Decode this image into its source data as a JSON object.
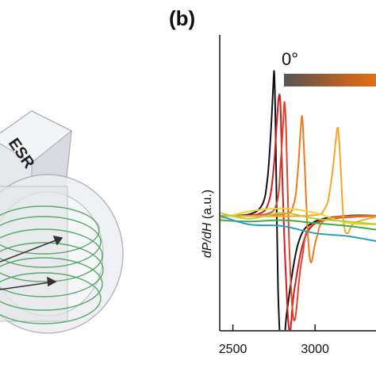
{
  "panel_label": "(b)",
  "gradient_label": "0°",
  "colors": {
    "device_body": "#e6e7ea",
    "device_edge": "#a9adb3",
    "coil": "#5aa86a",
    "black": "#111111"
  },
  "device": {
    "label": "ESR"
  },
  "chart_data": {
    "type": "line",
    "title": "",
    "xlabel": "",
    "ylabel_main": "dP/dH",
    "ylabel_unit": " (a.u.)",
    "x_ticks": [
      2500,
      3000
    ],
    "xlim": [
      2420,
      3400
    ],
    "ylim": [
      -1.2,
      1.2
    ],
    "grid": false,
    "colorbar": {
      "label": "0°",
      "colors": [
        "#555555",
        "#8a5a3a",
        "#c4631e",
        "#e07010"
      ]
    },
    "series": [
      {
        "color": "#111111",
        "x": [
          2420,
          2600,
          2680,
          2710,
          2730,
          2745,
          2752,
          2760,
          2775,
          2800,
          2830,
          2900,
          3000,
          3200,
          3400
        ],
        "y": [
          0.0,
          0.01,
          0.08,
          0.25,
          0.55,
          0.88,
          0.98,
          0.6,
          -0.5,
          -1.0,
          -0.65,
          -0.18,
          -0.04,
          0.0,
          0.0
        ]
      },
      {
        "color": "#d7191c",
        "x": [
          2420,
          2650,
          2720,
          2750,
          2765,
          2780,
          2790,
          2800,
          2820,
          2845,
          2875,
          2950,
          3100,
          3400
        ],
        "y": [
          0.0,
          0.01,
          0.1,
          0.35,
          0.6,
          0.82,
          0.75,
          0.3,
          -0.35,
          -0.8,
          -0.5,
          -0.12,
          -0.02,
          0.0
        ]
      },
      {
        "color": "#e0442a",
        "x": [
          2420,
          2700,
          2770,
          2790,
          2805,
          2815,
          2825,
          2840,
          2860,
          2880,
          2920,
          3000,
          3400
        ],
        "y": [
          0.0,
          0.01,
          0.1,
          0.35,
          0.62,
          0.78,
          0.55,
          -0.1,
          -0.6,
          -0.7,
          -0.3,
          -0.05,
          0.0
        ]
      },
      {
        "color": "#f07a1a",
        "x": [
          2420,
          2800,
          2870,
          2895,
          2910,
          2922,
          2935,
          2955,
          2975,
          3010,
          3080,
          3400
        ],
        "y": [
          0.0,
          0.01,
          0.08,
          0.3,
          0.55,
          0.68,
          0.4,
          -0.1,
          -0.32,
          -0.15,
          -0.02,
          0.0
        ]
      },
      {
        "color": "#f5a623",
        "x": [
          2420,
          2950,
          3060,
          3100,
          3125,
          3140,
          3155,
          3175,
          3200,
          3240,
          3400
        ],
        "y": [
          0.0,
          0.0,
          0.05,
          0.25,
          0.5,
          0.6,
          0.35,
          -0.05,
          -0.12,
          -0.05,
          0.0
        ]
      },
      {
        "color": "#f2d22e",
        "x": [
          2420,
          2600,
          2800,
          3000,
          3200,
          3400
        ],
        "y": [
          -0.02,
          0.03,
          0.05,
          0.02,
          -0.05,
          -0.06
        ]
      },
      {
        "color": "#b5cf3b",
        "x": [
          2420,
          2600,
          2800,
          3000,
          3200,
          3400
        ],
        "y": [
          0.02,
          -0.02,
          0.02,
          -0.02,
          -0.04,
          -0.06
        ]
      },
      {
        "color": "#3fae49",
        "x": [
          2420,
          2600,
          2800,
          3000,
          3200,
          3400
        ],
        "y": [
          -0.03,
          -0.04,
          -0.03,
          -0.05,
          -0.07,
          -0.1
        ]
      },
      {
        "color": "#2c9fbf",
        "x": [
          2420,
          2600,
          2800,
          3000,
          3200,
          3400
        ],
        "y": [
          0.0,
          -0.06,
          -0.07,
          -0.12,
          -0.14,
          -0.18
        ]
      }
    ]
  }
}
